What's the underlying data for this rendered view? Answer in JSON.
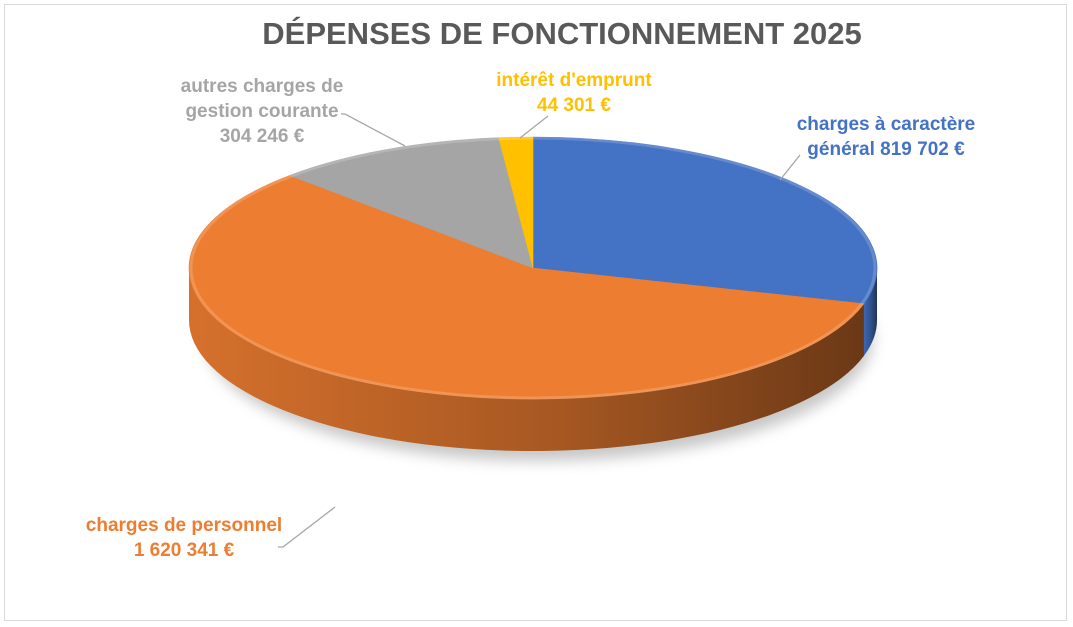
{
  "chart_data": {
    "type": "pie",
    "title": "DÉPENSES DE FONCTIONNEMENT 2025",
    "slices": [
      {
        "name": "charges à caractère général",
        "value": 819702,
        "label_lines": [
          "charges à caractère",
          "général 819 702 €"
        ],
        "color": "#4472C4"
      },
      {
        "name": "charges de personnel",
        "value": 1620341,
        "label_lines": [
          "charges de personnel",
          "1 620 341 €"
        ],
        "color": "#ED7D31"
      },
      {
        "name": "autres charges de gestion courante",
        "value": 304246,
        "label_lines": [
          "autres charges de",
          "gestion courante",
          "304 246 €"
        ],
        "color": "#A5A5A5"
      },
      {
        "name": "intérêt d'emprunt",
        "value": 44301,
        "label_lines": [
          "intérêt d'emprunt",
          "44 301 €"
        ],
        "color": "#FFC000"
      }
    ],
    "label_text_colors": [
      "#4472C4",
      "#ED7D31",
      "#A5A5A5",
      "#FFC000"
    ],
    "style": "3d",
    "legend": "none",
    "grid": false
  }
}
